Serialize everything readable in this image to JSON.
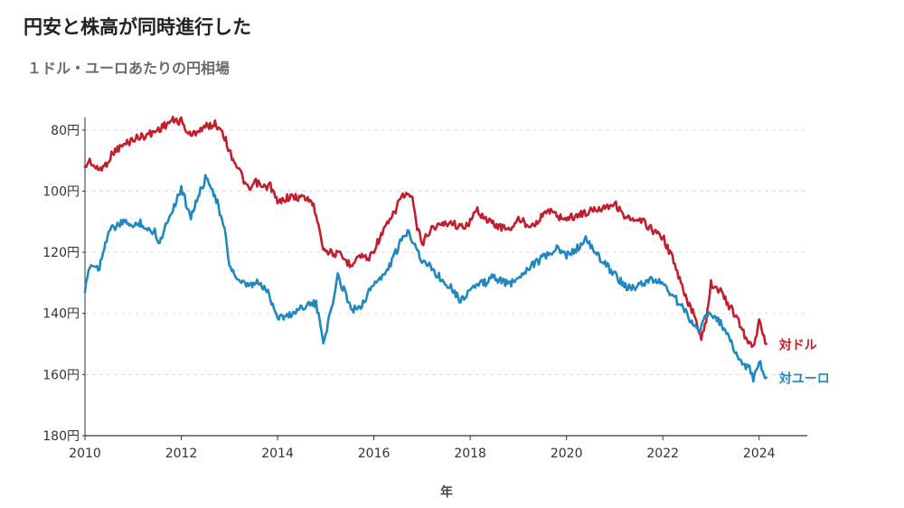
{
  "header": {
    "title": "円安と株高が同時進行した",
    "subtitle": "１ドル・ユーロあたりの円相場"
  },
  "chart_data": {
    "type": "line",
    "title": "円安と株高が同時進行した",
    "subtitle": "１ドル・ユーロあたりの円相場",
    "xlabel": "年",
    "ylabel": "",
    "xlim": [
      2010,
      2025
    ],
    "ylim": [
      180,
      70
    ],
    "y_inverted": true,
    "xticks": [
      2010,
      2012,
      2014,
      2016,
      2018,
      2020,
      2022,
      2024
    ],
    "xtick_labels": [
      "2010",
      "2012",
      "2014",
      "2016",
      "2018",
      "2020",
      "2022",
      "2024"
    ],
    "yticks": [
      80,
      100,
      120,
      140,
      160,
      180
    ],
    "ytick_labels": [
      "80円",
      "100円",
      "120円",
      "140円",
      "160円",
      "180円"
    ],
    "grid": true,
    "legend": "direct labels at line ends",
    "series": [
      {
        "name": "対ドル",
        "color": "#c0202e",
        "points": [
          [
            2010.0,
            92
          ],
          [
            2010.1,
            90
          ],
          [
            2010.25,
            93
          ],
          [
            2010.4,
            92
          ],
          [
            2010.6,
            87
          ],
          [
            2010.8,
            85
          ],
          [
            2011.0,
            83
          ],
          [
            2011.2,
            82
          ],
          [
            2011.4,
            81
          ],
          [
            2011.6,
            79
          ],
          [
            2011.8,
            77
          ],
          [
            2012.0,
            77
          ],
          [
            2012.1,
            80
          ],
          [
            2012.2,
            82
          ],
          [
            2012.35,
            80
          ],
          [
            2012.5,
            79
          ],
          [
            2012.7,
            78
          ],
          [
            2012.85,
            80
          ],
          [
            2013.0,
            87
          ],
          [
            2013.2,
            93
          ],
          [
            2013.4,
            100
          ],
          [
            2013.55,
            97
          ],
          [
            2013.7,
            99
          ],
          [
            2013.85,
            98
          ],
          [
            2014.0,
            104
          ],
          [
            2014.2,
            102
          ],
          [
            2014.5,
            102
          ],
          [
            2014.7,
            103
          ],
          [
            2014.85,
            110
          ],
          [
            2014.95,
            119
          ],
          [
            2015.1,
            120
          ],
          [
            2015.3,
            121
          ],
          [
            2015.5,
            124
          ],
          [
            2015.7,
            121
          ],
          [
            2015.9,
            122
          ],
          [
            2016.0,
            119
          ],
          [
            2016.2,
            113
          ],
          [
            2016.4,
            108
          ],
          [
            2016.55,
            102
          ],
          [
            2016.7,
            101
          ],
          [
            2016.8,
            103
          ],
          [
            2016.9,
            112
          ],
          [
            2017.0,
            117
          ],
          [
            2017.2,
            112
          ],
          [
            2017.4,
            111
          ],
          [
            2017.6,
            110
          ],
          [
            2017.8,
            112
          ],
          [
            2018.0,
            110
          ],
          [
            2018.15,
            106
          ],
          [
            2018.3,
            109
          ],
          [
            2018.5,
            111
          ],
          [
            2018.7,
            112
          ],
          [
            2018.9,
            112
          ],
          [
            2019.0,
            109
          ],
          [
            2019.2,
            111
          ],
          [
            2019.4,
            110
          ],
          [
            2019.6,
            106
          ],
          [
            2019.8,
            108
          ],
          [
            2020.0,
            109
          ],
          [
            2020.2,
            108
          ],
          [
            2020.4,
            107
          ],
          [
            2020.6,
            106
          ],
          [
            2020.8,
            105
          ],
          [
            2021.0,
            104
          ],
          [
            2021.2,
            108
          ],
          [
            2021.4,
            110
          ],
          [
            2021.6,
            110
          ],
          [
            2021.8,
            113
          ],
          [
            2022.0,
            115
          ],
          [
            2022.2,
            122
          ],
          [
            2022.35,
            129
          ],
          [
            2022.5,
            136
          ],
          [
            2022.65,
            140
          ],
          [
            2022.8,
            148
          ],
          [
            2022.9,
            142
          ],
          [
            2023.0,
            130
          ],
          [
            2023.2,
            133
          ],
          [
            2023.4,
            138
          ],
          [
            2023.55,
            142
          ],
          [
            2023.7,
            147
          ],
          [
            2023.8,
            150
          ],
          [
            2023.9,
            151
          ],
          [
            2023.95,
            146
          ],
          [
            2024.0,
            141
          ],
          [
            2024.1,
            148
          ],
          [
            2024.15,
            150
          ]
        ]
      },
      {
        "name": "対ユーロ",
        "color": "#1f89bf",
        "points": [
          [
            2010.0,
            133
          ],
          [
            2010.1,
            124
          ],
          [
            2010.3,
            125
          ],
          [
            2010.4,
            118
          ],
          [
            2010.5,
            113
          ],
          [
            2010.7,
            111
          ],
          [
            2010.9,
            110
          ],
          [
            2011.0,
            112
          ],
          [
            2011.15,
            110
          ],
          [
            2011.3,
            113
          ],
          [
            2011.45,
            113
          ],
          [
            2011.55,
            117
          ],
          [
            2011.7,
            110
          ],
          [
            2011.9,
            103
          ],
          [
            2012.0,
            99
          ],
          [
            2012.1,
            104
          ],
          [
            2012.2,
            108
          ],
          [
            2012.35,
            102
          ],
          [
            2012.5,
            96
          ],
          [
            2012.6,
            97
          ],
          [
            2012.75,
            104
          ],
          [
            2012.9,
            113
          ],
          [
            2013.0,
            124
          ],
          [
            2013.2,
            130
          ],
          [
            2013.4,
            131
          ],
          [
            2013.6,
            130
          ],
          [
            2013.8,
            133
          ],
          [
            2014.0,
            141
          ],
          [
            2014.2,
            141
          ],
          [
            2014.4,
            139
          ],
          [
            2014.6,
            137
          ],
          [
            2014.8,
            137
          ],
          [
            2014.95,
            149
          ],
          [
            2015.1,
            140
          ],
          [
            2015.25,
            128
          ],
          [
            2015.4,
            133
          ],
          [
            2015.55,
            139
          ],
          [
            2015.75,
            137
          ],
          [
            2015.9,
            133
          ],
          [
            2016.0,
            130
          ],
          [
            2016.2,
            128
          ],
          [
            2016.4,
            122
          ],
          [
            2016.55,
            117
          ],
          [
            2016.7,
            113
          ],
          [
            2016.85,
            117
          ],
          [
            2017.0,
            123
          ],
          [
            2017.2,
            125
          ],
          [
            2017.4,
            129
          ],
          [
            2017.6,
            131
          ],
          [
            2017.8,
            136
          ],
          [
            2017.95,
            133
          ],
          [
            2018.1,
            131
          ],
          [
            2018.3,
            130
          ],
          [
            2018.5,
            128
          ],
          [
            2018.7,
            130
          ],
          [
            2018.9,
            130
          ],
          [
            2019.0,
            128
          ],
          [
            2019.2,
            125
          ],
          [
            2019.4,
            123
          ],
          [
            2019.6,
            121
          ],
          [
            2019.8,
            119
          ],
          [
            2020.0,
            121
          ],
          [
            2020.2,
            119
          ],
          [
            2020.4,
            116
          ],
          [
            2020.6,
            120
          ],
          [
            2020.8,
            124
          ],
          [
            2021.0,
            127
          ],
          [
            2021.2,
            131
          ],
          [
            2021.4,
            132
          ],
          [
            2021.6,
            130
          ],
          [
            2021.8,
            129
          ],
          [
            2022.0,
            130
          ],
          [
            2022.2,
            134
          ],
          [
            2022.35,
            137
          ],
          [
            2022.5,
            140
          ],
          [
            2022.65,
            144
          ],
          [
            2022.8,
            145
          ],
          [
            2022.9,
            140
          ],
          [
            2023.0,
            141
          ],
          [
            2023.2,
            143
          ],
          [
            2023.4,
            149
          ],
          [
            2023.55,
            154
          ],
          [
            2023.7,
            157
          ],
          [
            2023.8,
            158
          ],
          [
            2023.88,
            162
          ],
          [
            2023.95,
            158
          ],
          [
            2024.0,
            155
          ],
          [
            2024.08,
            160
          ],
          [
            2024.15,
            161
          ]
        ]
      }
    ]
  }
}
